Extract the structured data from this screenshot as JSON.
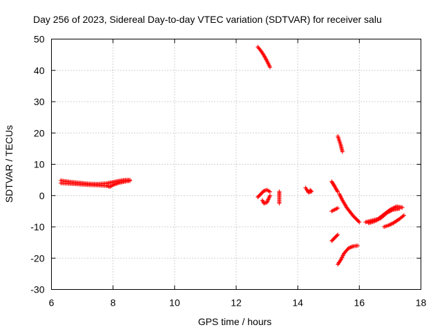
{
  "chart_data": {
    "type": "scatter",
    "title": "Day 256 of 2023, Sidereal Day-to-day VTEC variation (SDTVAR) for receiver salu",
    "xlabel": "GPS time / hours",
    "ylabel": "SDTVAR / TECUs",
    "xlim": [
      6,
      18
    ],
    "ylim": [
      -30,
      50
    ],
    "xticks": [
      "6",
      "8",
      "10",
      "12",
      "14",
      "16",
      "18"
    ],
    "yticks": [
      "-30",
      "-20",
      "-10",
      "0",
      "10",
      "20",
      "30",
      "40",
      "50"
    ],
    "grid": true,
    "legend": "none",
    "marker_color": "#ff0000",
    "marker": "+",
    "segments": [
      {
        "points": [
          [
            6.3,
            4.8
          ],
          [
            6.6,
            4.4
          ],
          [
            6.9,
            4.1
          ],
          [
            7.2,
            3.8
          ],
          [
            7.5,
            3.7
          ],
          [
            7.8,
            3.9
          ],
          [
            8.0,
            4.3
          ],
          [
            8.2,
            4.7
          ],
          [
            8.4,
            5.0
          ],
          [
            8.55,
            5.0
          ]
        ]
      },
      {
        "points": [
          [
            6.3,
            4.0
          ],
          [
            6.6,
            3.8
          ],
          [
            6.9,
            3.6
          ],
          [
            7.2,
            3.4
          ],
          [
            7.5,
            3.3
          ],
          [
            7.8,
            3.1
          ],
          [
            7.9,
            2.8
          ],
          [
            8.0,
            3.4
          ],
          [
            8.2,
            4.1
          ],
          [
            8.4,
            4.5
          ],
          [
            8.55,
            4.7
          ]
        ]
      },
      {
        "points": [
          [
            12.7,
            47.5
          ],
          [
            12.8,
            46.3
          ],
          [
            12.9,
            44.8
          ],
          [
            13.0,
            43.0
          ],
          [
            13.1,
            41.0
          ]
        ]
      },
      {
        "points": [
          [
            12.7,
            -0.5
          ],
          [
            12.8,
            0.5
          ],
          [
            12.9,
            1.5
          ],
          [
            13.0,
            1.8
          ],
          [
            13.1,
            1.2
          ]
        ]
      },
      {
        "points": [
          [
            12.85,
            -1.5
          ],
          [
            12.9,
            -2.5
          ],
          [
            13.0,
            -2.2
          ],
          [
            13.05,
            -1.0
          ],
          [
            13.1,
            0.0
          ]
        ]
      },
      {
        "points": [
          [
            13.4,
            1.3
          ],
          [
            13.4,
            0.0
          ],
          [
            13.4,
            -2.5
          ]
        ]
      },
      {
        "points": [
          [
            14.25,
            2.5
          ],
          [
            14.3,
            1.8
          ],
          [
            14.35,
            1.0
          ],
          [
            14.45,
            1.3
          ],
          [
            14.4,
            1.8
          ]
        ]
      },
      {
        "points": [
          [
            15.1,
            4.5
          ],
          [
            15.15,
            3.7
          ],
          [
            15.2,
            2.9
          ],
          [
            15.25,
            2.0
          ],
          [
            15.3,
            1.2
          ]
        ]
      },
      {
        "points": [
          [
            15.3,
            19.0
          ],
          [
            15.35,
            17.5
          ],
          [
            15.4,
            16.0
          ],
          [
            15.45,
            14.0
          ]
        ]
      },
      {
        "points": [
          [
            15.35,
            0.5
          ],
          [
            15.45,
            -1.5
          ],
          [
            15.6,
            -4.0
          ],
          [
            15.8,
            -6.5
          ],
          [
            16.0,
            -8.5
          ]
        ]
      },
      {
        "points": [
          [
            15.1,
            -5.0
          ],
          [
            15.2,
            -4.5
          ],
          [
            15.3,
            -4.0
          ]
        ]
      },
      {
        "points": [
          [
            15.1,
            -14.5
          ],
          [
            15.2,
            -13.5
          ],
          [
            15.3,
            -12.5
          ]
        ]
      },
      {
        "points": [
          [
            15.3,
            -22.0
          ],
          [
            15.4,
            -20.5
          ],
          [
            15.5,
            -18.5
          ],
          [
            15.65,
            -16.8
          ],
          [
            15.8,
            -16.2
          ],
          [
            15.95,
            -16.0
          ]
        ]
      },
      {
        "points": [
          [
            16.2,
            -8.5
          ],
          [
            16.4,
            -8.0
          ],
          [
            16.6,
            -7.5
          ],
          [
            16.8,
            -6.0
          ],
          [
            17.0,
            -4.5
          ],
          [
            17.2,
            -3.5
          ],
          [
            17.4,
            -3.8
          ]
        ]
      },
      {
        "points": [
          [
            16.3,
            -8.8
          ],
          [
            16.5,
            -8.2
          ],
          [
            16.7,
            -7.2
          ],
          [
            16.9,
            -5.5
          ],
          [
            17.1,
            -4.5
          ],
          [
            17.3,
            -4.2
          ]
        ]
      },
      {
        "points": [
          [
            16.8,
            -10.0
          ],
          [
            16.95,
            -9.5
          ],
          [
            17.1,
            -8.8
          ],
          [
            17.3,
            -7.5
          ],
          [
            17.45,
            -6.3
          ]
        ]
      }
    ]
  }
}
